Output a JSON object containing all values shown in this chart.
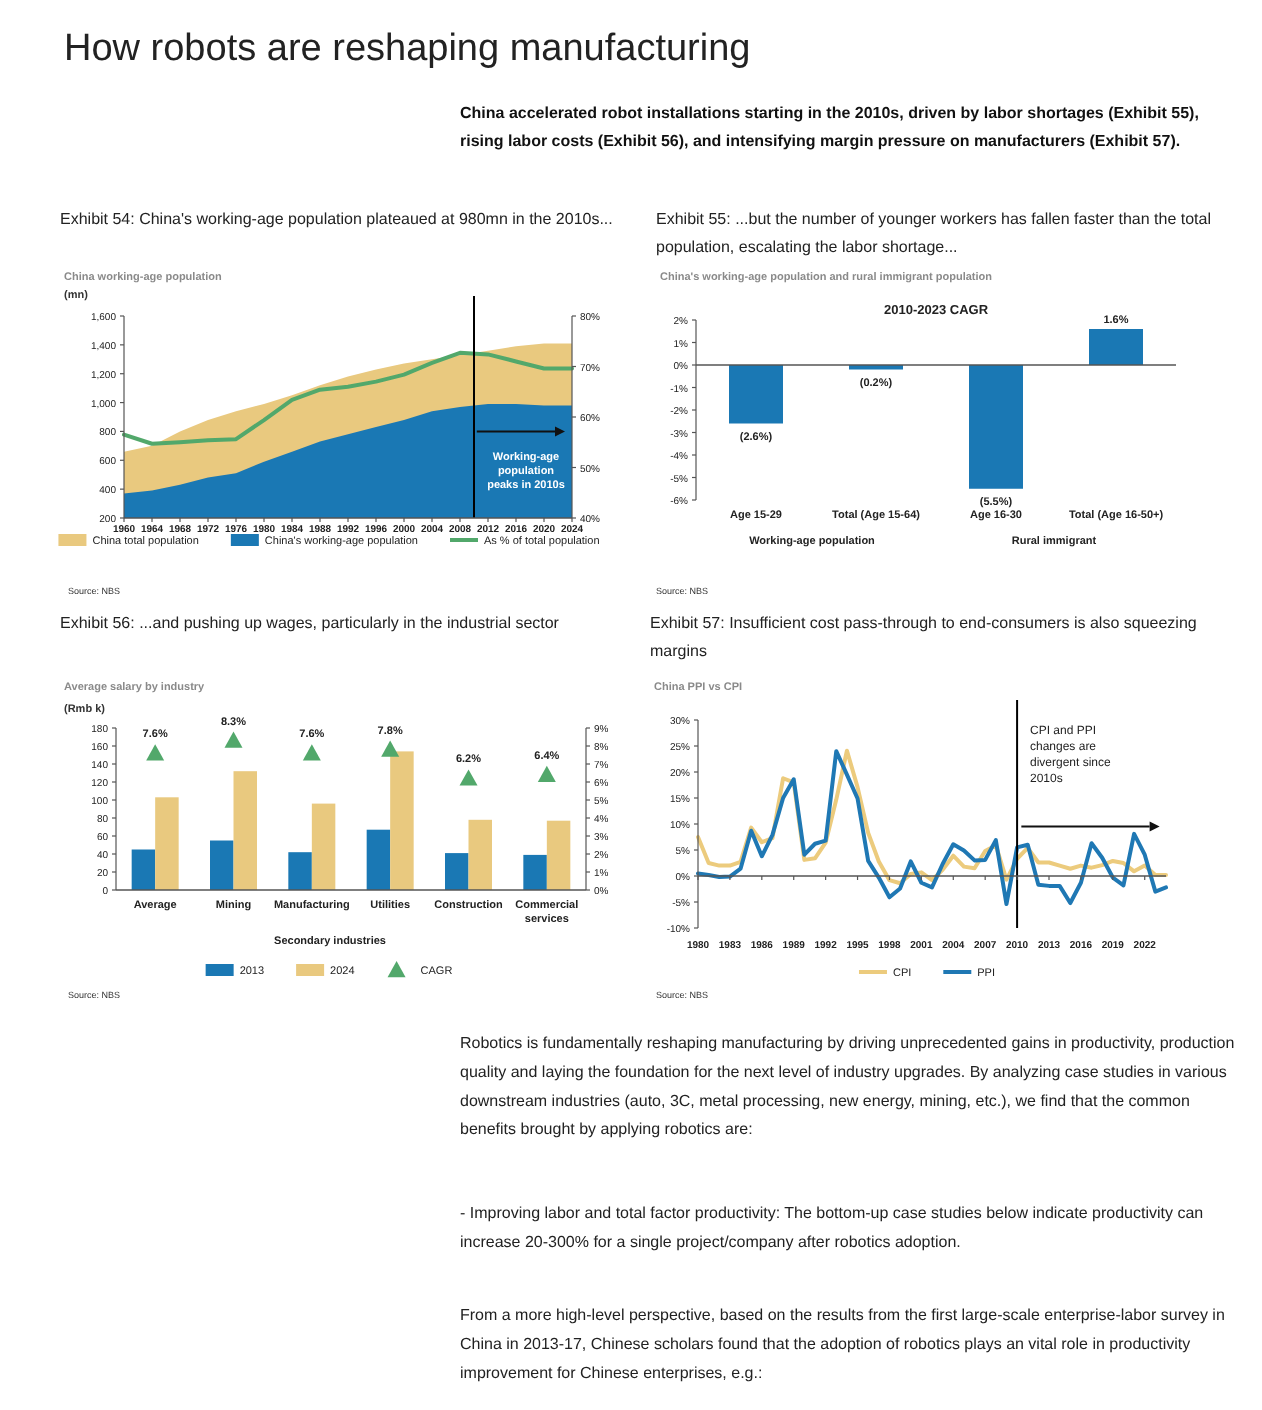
{
  "chart_data": [
    {
      "type": "other",
      "title": "How robots are reshaping manufacturing",
      "annotations": [
        "China accelerated robot installations starting in the 2010s, driven by labor shortages (Exhibit 55), rising labor costs (Exhibit 56), and intensifying margin pressure on manufacturers (Exhibit 57)."
      ]
    },
    {
      "type": "area",
      "title": "Exhibit 54: China's working-age population plateaued at 980mn in the 2010s...",
      "subtitle": "China working-age population",
      "ylabel": "(mn)",
      "x": [
        1960,
        1964,
        1968,
        1972,
        1976,
        1980,
        1984,
        1988,
        1992,
        1996,
        2000,
        2004,
        2008,
        2012,
        2016,
        2020,
        2024
      ],
      "xlim": [
        1960,
        2024
      ],
      "xticks": [
        1960,
        1964,
        1968,
        1972,
        1976,
        1980,
        1984,
        1988,
        1992,
        1996,
        2000,
        2004,
        2008,
        2012,
        2016,
        2020,
        2024
      ],
      "ylim": [
        200,
        1600
      ],
      "yticks": [
        200,
        400,
        600,
        800,
        {
          "value": 1000,
          "label": "1,000"
        },
        {
          "value": 1200,
          "label": "1,200"
        },
        {
          "value": 1400,
          "label": "1,400"
        },
        {
          "value": 1600,
          "label": "1,600"
        }
      ],
      "y2lim": [
        40,
        80
      ],
      "y2ticks": [
        {
          "value": 40,
          "label": "40%"
        },
        {
          "value": 50,
          "label": "50%"
        },
        {
          "value": 60,
          "label": "60%"
        },
        {
          "value": 70,
          "label": "70%"
        },
        {
          "value": 80,
          "label": "80%"
        }
      ],
      "series": [
        {
          "name": "China total population",
          "color": "#e9c97f",
          "values": [
            660,
            700,
            800,
            880,
            940,
            990,
            1050,
            1120,
            1180,
            1230,
            1270,
            1300,
            1330,
            1360,
            1390,
            1410,
            1410
          ]
        },
        {
          "name": "China's working-age population",
          "color": "#1a78b4",
          "values": [
            370,
            390,
            430,
            480,
            510,
            590,
            660,
            730,
            780,
            830,
            880,
            940,
            970,
            990,
            990,
            980,
            980
          ]
        },
        {
          "name": "As % of total population",
          "type": "line",
          "axis": "y2",
          "color": "#52a86b",
          "values": [
            56.5,
            54.7,
            55,
            55.4,
            55.6,
            59.4,
            63.4,
            65.4,
            66,
            67,
            68.4,
            70.7,
            72.7,
            72.4,
            71,
            69.6,
            69.6
          ]
        }
      ],
      "ref_lines": [
        {
          "axis": "x",
          "value": 2010,
          "color": "#000000"
        }
      ],
      "legend": "bottom",
      "annotations": [
        "Working-age population peaks in 2010s",
        "Source: NBS"
      ]
    },
    {
      "type": "bar",
      "title": "Exhibit 55: ...but the number of younger workers has fallen faster than the total population, escalating the labor shortage...",
      "subtitle": "China's working-age population and rural immigrant population",
      "categories": [
        "Age 15-29",
        "Total (Age 15-64)",
        "Age 16-30",
        "Total (Age 16-50+)"
      ],
      "values": [
        -2.6,
        -0.2,
        -5.5,
        1.6
      ],
      "color": "#1a78b4",
      "value_labels": [
        "(2.6%)",
        "(0.2%)",
        "(5.5%)",
        "1.6%"
      ],
      "ylim": [
        -6,
        2
      ],
      "yticks": [
        {
          "value": -6,
          "label": "-6%"
        },
        {
          "value": -5,
          "label": "-5%"
        },
        {
          "value": -4,
          "label": "-4%"
        },
        {
          "value": -3,
          "label": "-3%"
        },
        {
          "value": -2,
          "label": "-2%"
        },
        {
          "value": -1,
          "label": "-1%"
        },
        {
          "value": 0,
          "label": "0%"
        },
        {
          "value": 1,
          "label": "1%"
        },
        {
          "value": 2,
          "label": "2%"
        }
      ],
      "annotations": [
        "2010-2023 CAGR",
        "Working-age population",
        "Rural immigrant",
        "Source: NBS"
      ]
    },
    {
      "type": "bar",
      "title": "Exhibit 56: ...and pushing up wages, particularly in the industrial sector",
      "subtitle": "Average salary by industry",
      "ylabel": "(Rmb k)",
      "categories": [
        "Average",
        "Mining",
        "Manufacturing",
        "Utilities",
        "Construction",
        "Commercial services"
      ],
      "ylim": [
        0,
        180
      ],
      "yticks": [
        0,
        20,
        40,
        60,
        80,
        100,
        120,
        140,
        160,
        180
      ],
      "y2lim": [
        0,
        9
      ],
      "y2ticks": [
        {
          "value": 0,
          "label": "0%"
        },
        {
          "value": 1,
          "label": "1%"
        },
        {
          "value": 2,
          "label": "2%"
        },
        {
          "value": 3,
          "label": "3%"
        },
        {
          "value": 4,
          "label": "4%"
        },
        {
          "value": 5,
          "label": "5%"
        },
        {
          "value": 6,
          "label": "6%"
        },
        {
          "value": 7,
          "label": "7%"
        },
        {
          "value": 8,
          "label": "8%"
        },
        {
          "value": 9,
          "label": "9%"
        }
      ],
      "series": [
        {
          "name": "2013",
          "color": "#1a78b4",
          "values": [
            45,
            55,
            42,
            67,
            41,
            39
          ]
        },
        {
          "name": "2024",
          "color": "#e9c97f",
          "values": [
            103,
            132,
            96,
            154,
            78,
            77
          ]
        },
        {
          "name": "CAGR",
          "type": "scatter",
          "axis": "y2",
          "color": "#52a86b",
          "x": [
            "Average",
            "Mining",
            "Manufacturing",
            "Utilities",
            "Construction",
            "Commercial services"
          ],
          "values": [
            7.6,
            8.3,
            7.6,
            7.8,
            6.2,
            6.4
          ],
          "value_labels": [
            "7.6%",
            "8.3%",
            "7.6%",
            "7.8%",
            "6.2%",
            "6.4%"
          ]
        }
      ],
      "marker": "triangle",
      "legend": "bottom",
      "annotations": [
        "Secondary industries",
        "Source: NBS"
      ]
    },
    {
      "type": "line",
      "title": "Exhibit 57: Insufficient cost pass-through to end-consumers is also squeezing margins",
      "subtitle": "China PPI vs CPI",
      "x": [
        1980,
        1981,
        1982,
        1983,
        1984,
        1985,
        1986,
        1987,
        1988,
        1989,
        1990,
        1991,
        1992,
        1993,
        1994,
        1995,
        1996,
        1997,
        1998,
        1999,
        2000,
        2001,
        2002,
        2003,
        2004,
        2005,
        2006,
        2007,
        2008,
        2009,
        2010,
        2011,
        2012,
        2013,
        2014,
        2015,
        2016,
        2017,
        2018,
        2019,
        2020,
        2021,
        2022,
        2023,
        2024
      ],
      "xlim": [
        1980,
        2024
      ],
      "xticks": [
        1980,
        1983,
        1986,
        1989,
        1992,
        1995,
        1998,
        2001,
        2004,
        2007,
        2010,
        2013,
        2016,
        2019,
        2022
      ],
      "ylim": [
        -10,
        30
      ],
      "yticks": [
        {
          "value": -10,
          "label": "-10%"
        },
        {
          "value": -5,
          "label": "-5%"
        },
        {
          "value": 0,
          "label": "0%"
        },
        {
          "value": 5,
          "label": "5%"
        },
        {
          "value": 10,
          "label": "10%"
        },
        {
          "value": 15,
          "label": "15%"
        },
        {
          "value": 20,
          "label": "20%"
        },
        {
          "value": 25,
          "label": "25%"
        },
        {
          "value": 30,
          "label": "30%"
        }
      ],
      "series": [
        {
          "name": "CPI",
          "color": "#eccb7d",
          "values": [
            7.5,
            2.5,
            2.0,
            2.0,
            2.7,
            9.3,
            6.5,
            7.3,
            18.8,
            18.0,
            3.1,
            3.4,
            6.4,
            14.7,
            24.1,
            17.1,
            8.3,
            2.8,
            -0.8,
            -1.4,
            0.4,
            0.7,
            -0.8,
            1.2,
            3.9,
            1.8,
            1.5,
            4.8,
            5.9,
            -0.7,
            3.3,
            5.4,
            2.6,
            2.6,
            2.0,
            1.4,
            2.0,
            1.6,
            2.1,
            2.9,
            2.5,
            0.9,
            2.0,
            0.2,
            0.2
          ]
        },
        {
          "name": "PPI",
          "color": "#1f78b4",
          "values": [
            0.5,
            0.2,
            -0.2,
            -0.1,
            1.4,
            8.7,
            3.8,
            7.9,
            15,
            18.6,
            4.1,
            6.2,
            6.8,
            24,
            19.5,
            14.9,
            2.9,
            -0.3,
            -4.1,
            -2.4,
            2.8,
            -1.3,
            -2.2,
            2.3,
            6.1,
            4.9,
            3.0,
            3.1,
            6.9,
            -5.4,
            5.5,
            6.0,
            -1.7,
            -1.9,
            -1.9,
            -5.2,
            -1.3,
            6.3,
            3.5,
            -0.3,
            -1.8,
            8.1,
            4.1,
            -3.0,
            -2.2
          ]
        }
      ],
      "ref_lines": [
        {
          "axis": "x",
          "value": 2010,
          "color": "#000000"
        }
      ],
      "legend": "bottom",
      "annotations": [
        "CPI and PPI changes are divergent since 2010s",
        "Source: NBS"
      ]
    },
    {
      "type": "other",
      "annotations": [
        "Robotics is fundamentally reshaping manufacturing by driving unprecedented gains in productivity, production quality and laying the foundation for the next level of industry upgrades. By analyzing case studies in various downstream industries (auto, 3C, metal processing, new energy, mining, etc.), we find that the common benefits brought by applying robotics are:",
        "- Improving labor and total factor productivity: The bottom-up case studies below indicate productivity can increase 20-300% for a single project/company after robotics adoption.",
        "From a more high-level perspective, based on the results from the first large-scale enterprise-labor survey in China in 2013-17, Chinese scholars found that the adoption of robotics plays an vital role in productivity improvement for Chinese enterprises, e.g.:"
      ]
    }
  ]
}
